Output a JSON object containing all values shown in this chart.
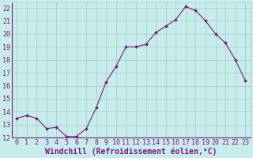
{
  "x": [
    0,
    1,
    2,
    3,
    4,
    5,
    6,
    7,
    8,
    9,
    10,
    11,
    12,
    13,
    14,
    15,
    16,
    17,
    18,
    19,
    20,
    21,
    22,
    23
  ],
  "y": [
    13.5,
    13.7,
    13.5,
    12.7,
    12.8,
    12.1,
    12.1,
    12.7,
    14.3,
    16.3,
    17.5,
    19.0,
    19.0,
    19.2,
    20.1,
    20.6,
    21.1,
    22.1,
    21.8,
    21.0,
    20.0,
    19.3,
    18.0,
    16.4
  ],
  "line_color": "#7B1A7B",
  "marker_color": "#7B1A7B",
  "bg_color": "#c8ecec",
  "grid_color": "#a0cccc",
  "xlabel": "Windchill (Refroidissement éolien,°C)",
  "xlabel_color": "#7B1A7B",
  "xtick_color": "#7B1A7B",
  "ytick_color": "#7B1A7B",
  "xlim": [
    -0.5,
    23.5
  ],
  "ylim": [
    12,
    22.4
  ],
  "xticks": [
    0,
    1,
    2,
    3,
    4,
    5,
    6,
    7,
    8,
    9,
    10,
    11,
    12,
    13,
    14,
    15,
    16,
    17,
    18,
    19,
    20,
    21,
    22,
    23
  ],
  "yticks": [
    12,
    13,
    14,
    15,
    16,
    17,
    18,
    19,
    20,
    21,
    22
  ],
  "xlabel_fontsize": 7,
  "tick_fontsize": 6,
  "figsize": [
    3.2,
    2.0
  ],
  "dpi": 100
}
